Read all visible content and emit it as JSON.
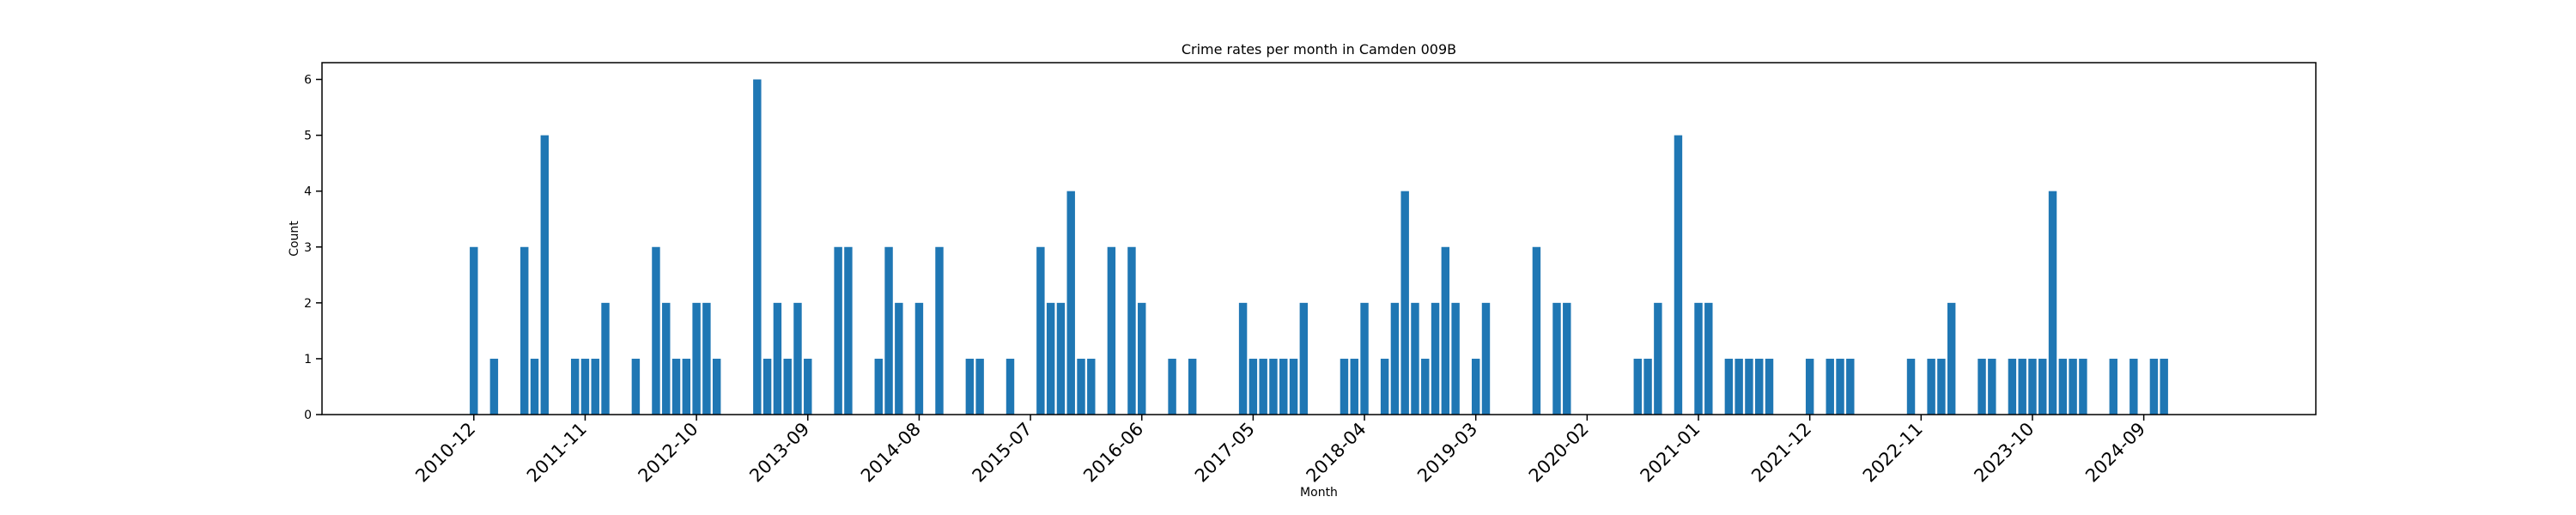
{
  "chart_data": {
    "type": "bar",
    "title": "Crime rates per month in Camden 009B",
    "xlabel": "Month",
    "ylabel": "Count",
    "ylim": [
      0,
      6.3
    ],
    "yticks": [
      0,
      1,
      2,
      3,
      4,
      5,
      6
    ],
    "xlim_months": [
      "2009-09",
      "2026-02"
    ],
    "xtick_labels": [
      "2010-12",
      "2011-11",
      "2012-10",
      "2013-09",
      "2014-08",
      "2015-07",
      "2016-06",
      "2017-05",
      "2018-04",
      "2019-03",
      "2020-02",
      "2021-01",
      "2021-12",
      "2022-11",
      "2023-10",
      "2024-09"
    ],
    "grid": false,
    "legend": "none",
    "bar_color": "#1f77b4",
    "categories": [
      "2010-12",
      "2011-02",
      "2011-05",
      "2011-06",
      "2011-07",
      "2011-10",
      "2011-11",
      "2011-12",
      "2012-01",
      "2012-04",
      "2012-06",
      "2012-07",
      "2012-08",
      "2012-09",
      "2012-10",
      "2012-11",
      "2012-12",
      "2013-04",
      "2013-05",
      "2013-06",
      "2013-07",
      "2013-08",
      "2013-09",
      "2013-12",
      "2014-01",
      "2014-04",
      "2014-05",
      "2014-06",
      "2014-08",
      "2014-10",
      "2015-01",
      "2015-02",
      "2015-05",
      "2015-08",
      "2015-09",
      "2015-10",
      "2015-11",
      "2015-12",
      "2016-01",
      "2016-03",
      "2016-05",
      "2016-06",
      "2016-09",
      "2016-11",
      "2017-04",
      "2017-05",
      "2017-06",
      "2017-07",
      "2017-08",
      "2017-09",
      "2017-10",
      "2018-02",
      "2018-03",
      "2018-04",
      "2018-06",
      "2018-07",
      "2018-08",
      "2018-09",
      "2018-10",
      "2018-11",
      "2018-12",
      "2019-01",
      "2019-03",
      "2019-04",
      "2019-09",
      "2019-11",
      "2019-12",
      "2020-07",
      "2020-08",
      "2020-09",
      "2020-11",
      "2021-01",
      "2021-02",
      "2021-04",
      "2021-05",
      "2021-06",
      "2021-07",
      "2021-08",
      "2021-12",
      "2022-02",
      "2022-03",
      "2022-04",
      "2022-10",
      "2022-12",
      "2023-01",
      "2023-02",
      "2023-05",
      "2023-06",
      "2023-08",
      "2023-09",
      "2023-10",
      "2023-11",
      "2023-12",
      "2024-01",
      "2024-02",
      "2024-03",
      "2024-06",
      "2024-08",
      "2024-10",
      "2024-11"
    ],
    "values": [
      3,
      1,
      3,
      1,
      5,
      1,
      1,
      1,
      2,
      1,
      3,
      2,
      1,
      1,
      2,
      2,
      1,
      6,
      1,
      2,
      1,
      2,
      1,
      3,
      3,
      1,
      3,
      2,
      2,
      3,
      1,
      1,
      1,
      3,
      2,
      2,
      4,
      1,
      1,
      3,
      3,
      2,
      1,
      1,
      2,
      1,
      1,
      1,
      1,
      1,
      2,
      1,
      1,
      2,
      1,
      2,
      4,
      2,
      1,
      2,
      3,
      2,
      1,
      2,
      3,
      2,
      2,
      1,
      1,
      2,
      5,
      2,
      2,
      1,
      1,
      1,
      1,
      1,
      1,
      1,
      1,
      1,
      1,
      1,
      1,
      2,
      1,
      1,
      1,
      1,
      1,
      1,
      4,
      1,
      1,
      1,
      1,
      1,
      1,
      1
    ]
  }
}
